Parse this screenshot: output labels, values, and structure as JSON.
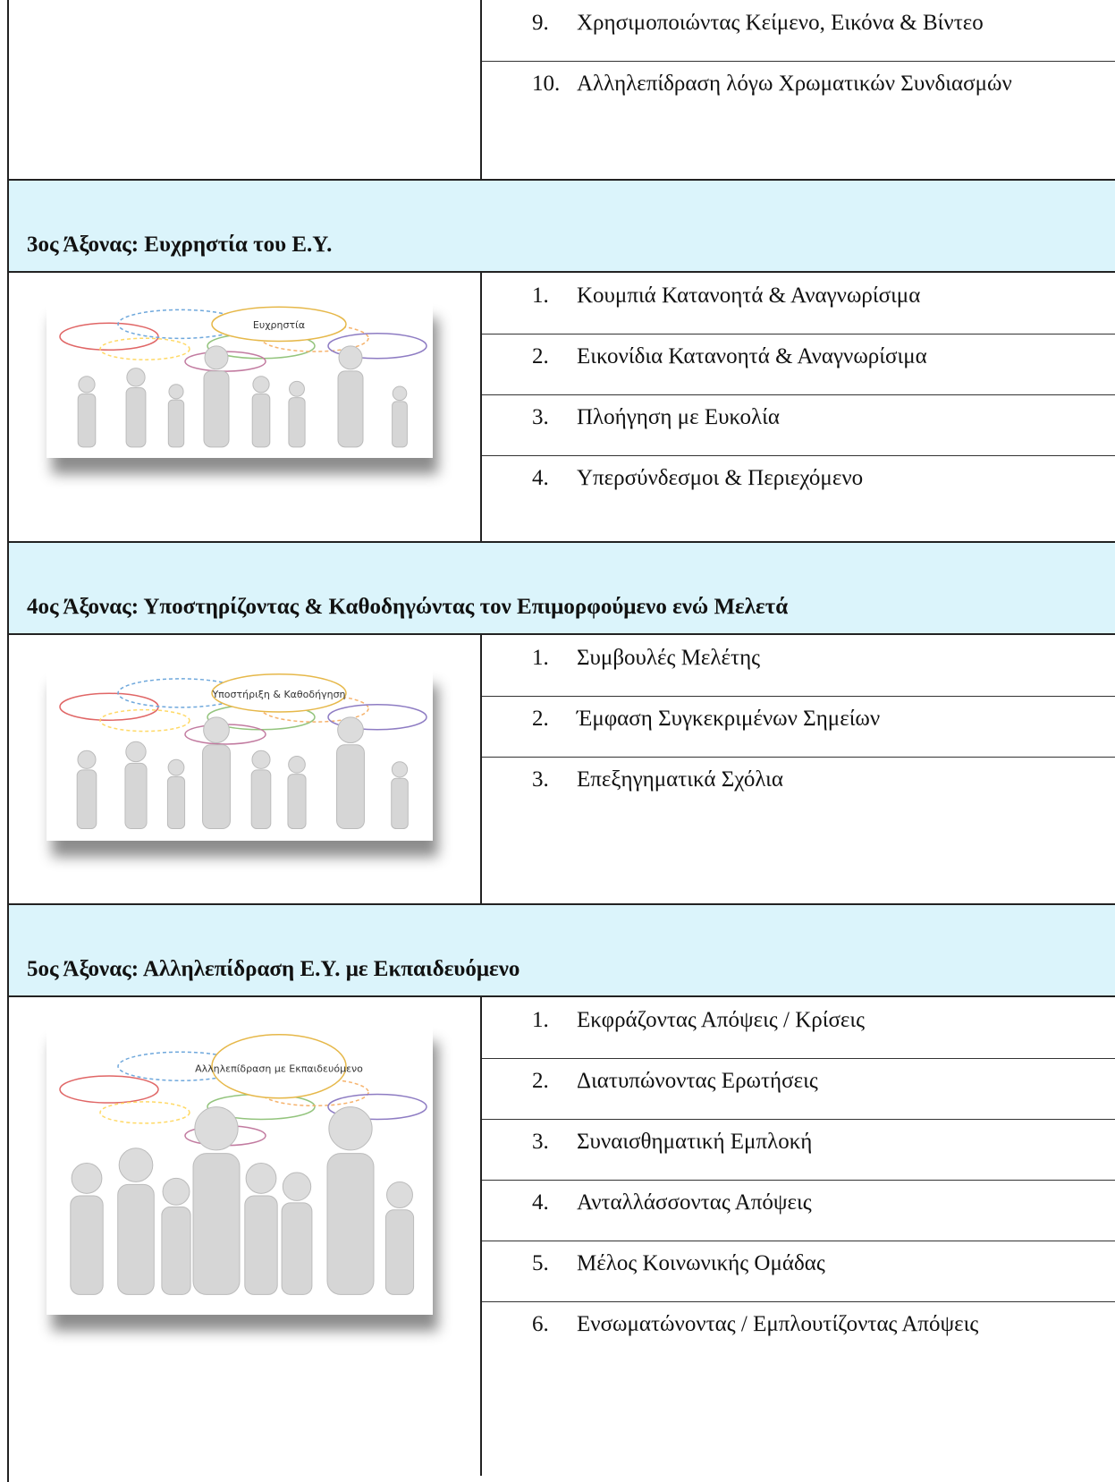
{
  "sections": [
    {
      "items": [
        {
          "number": "9.",
          "text": "Χρησιμοποιώντας Κείμενο, Εικόνα & Βίντεο"
        },
        {
          "number": "10.",
          "text": "Αλληλεπίδραση λόγω Χρωματικών Συνδιασμών"
        }
      ]
    },
    {
      "heading": "3ος Άξονας: Ευχρηστία του Ε.Υ.",
      "image_label": "Ευχρηστία",
      "items": [
        {
          "number": "1.",
          "text": "Κουμπιά Κατανοητά & Αναγνωρίσιμα"
        },
        {
          "number": "2.",
          "text": "Εικονίδια Κατανοητά & Αναγνωρίσιμα"
        },
        {
          "number": "3.",
          "text": "Πλοήγηση με Ευκολία"
        },
        {
          "number": "4.",
          "text": "Υπερσύνδεσμοι & Περιεχόμενο"
        }
      ]
    },
    {
      "heading": "4ος Άξονας: Υποστηρίζοντας & Καθοδηγώντας τον Επιμορφούμενο ενώ Μελετά",
      "image_label": "Υποστήριξη & Καθοδήγηση",
      "items": [
        {
          "number": "1.",
          "text": "Συμβουλές Μελέτης"
        },
        {
          "number": "2.",
          "text": "Έμφαση Συγκεκριμένων Σημείων"
        },
        {
          "number": "3.",
          "text": "Επεξηγηματικά Σχόλια"
        }
      ]
    },
    {
      "heading": "5ος Άξονας: Αλληλεπίδραση Ε.Υ. με Εκπαιδευόμενο",
      "image_label": "Αλληλεπίδραση με Εκπαιδευόμενο",
      "items": [
        {
          "number": "1.",
          "text": "Εκφράζοντας Απόψεις / Κρίσεις"
        },
        {
          "number": "2.",
          "text": "Διατυπώνοντας Ερωτήσεις"
        },
        {
          "number": "3.",
          "text": "Συναισθηματική Εμπλοκή"
        },
        {
          "number": "4.",
          "text": "Ανταλλάσσοντας Απόψεις"
        },
        {
          "number": "5.",
          "text": "Μέλος Κοινωνικής Ομάδας"
        },
        {
          "number": "6.",
          "text": "Ενσωματώνοντας / Εμπλουτίζοντας Απόψεις"
        }
      ]
    }
  ]
}
